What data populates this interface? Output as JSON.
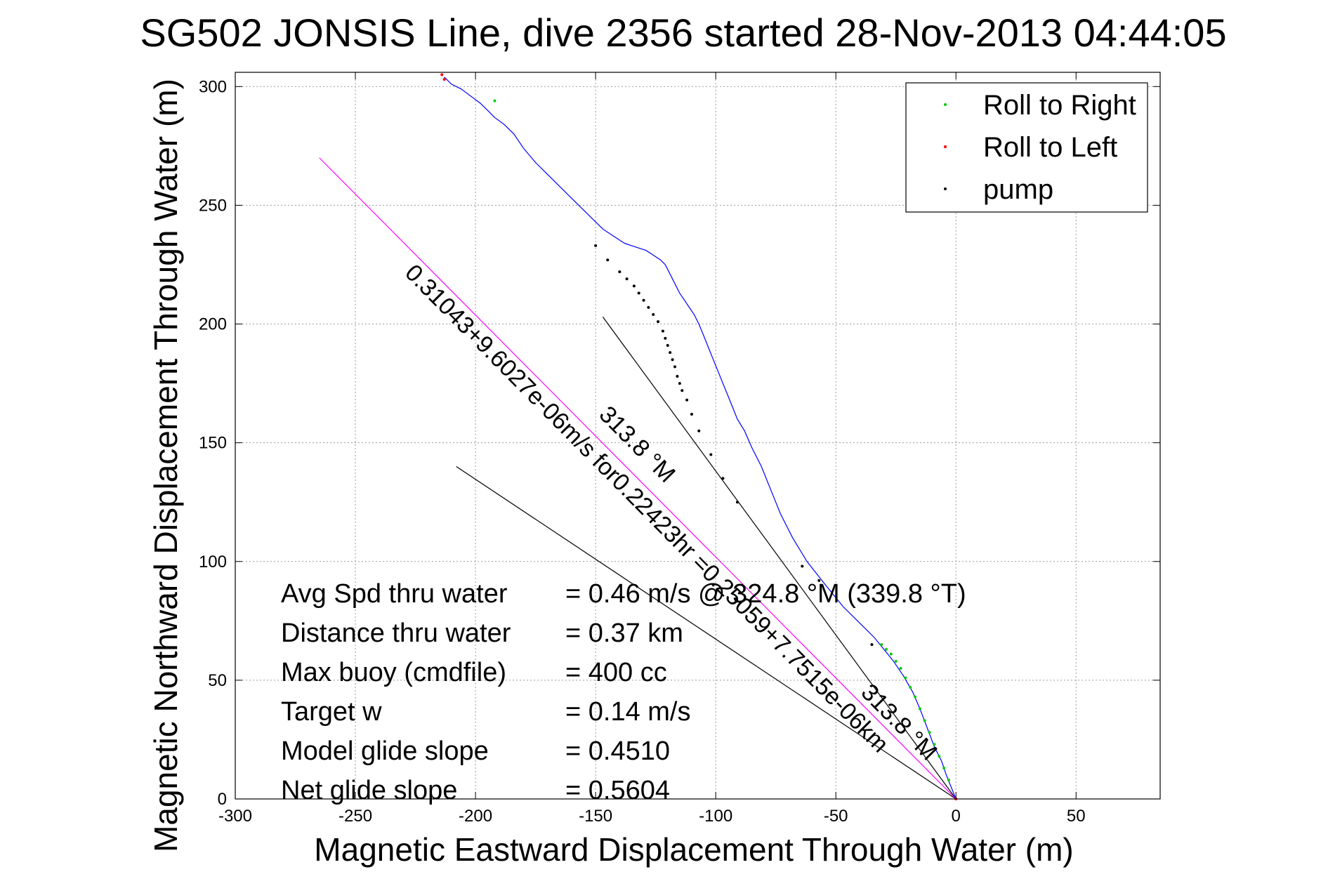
{
  "chart_data": {
    "type": "scatter",
    "title": "SG502 JONSIS Line, dive 2356 started 28-Nov-2013 04:44:05",
    "xlabel": "Magnetic Eastward Displacement Through Water (m)",
    "ylabel": "Magnetic Northward Displacement Through Water (m)",
    "xlim": [
      -300,
      85
    ],
    "ylim": [
      0,
      306
    ],
    "xticks": [
      -300,
      -250,
      -200,
      -150,
      -100,
      -50,
      0,
      50
    ],
    "yticks": [
      0,
      50,
      100,
      150,
      200,
      250,
      300
    ],
    "grid": true,
    "legend_position": "top-right",
    "legend": [
      {
        "label": "Roll to Right",
        "color": "#00cc00"
      },
      {
        "label": "Roll to Left",
        "color": "#ff0000"
      },
      {
        "label": "pump",
        "color": "#000000"
      }
    ],
    "track": {
      "color": "#0000ff",
      "x": [
        0,
        -2,
        -4,
        -6,
        -9,
        -12,
        -15,
        -18,
        -22,
        -26,
        -30,
        -34,
        -40,
        -47,
        -55,
        -62,
        -68,
        -73,
        -77,
        -81,
        -85,
        -88,
        -91,
        -93,
        -95,
        -97,
        -99,
        -101,
        -103,
        -105,
        -107,
        -109,
        -111,
        -113,
        -115,
        -116,
        -117,
        -118,
        -119,
        -120,
        -121,
        -123,
        -126,
        -129,
        -132,
        -135,
        -138,
        -141,
        -144,
        -147,
        -150,
        -155,
        -160,
        -165,
        -170,
        -175,
        -180,
        -184,
        -188,
        -192,
        -195,
        -198,
        -202,
        -206,
        -210,
        -212,
        -213
      ],
      "y": [
        0,
        5,
        10,
        16,
        22,
        30,
        38,
        45,
        52,
        58,
        63,
        68,
        74,
        81,
        91,
        100,
        110,
        120,
        130,
        140,
        148,
        155,
        160,
        165,
        170,
        175,
        180,
        185,
        190,
        195,
        200,
        204,
        207,
        210,
        213,
        215,
        217,
        219,
        221,
        223,
        225,
        227,
        229,
        231,
        232,
        233,
        234,
        236,
        238,
        240,
        243,
        248,
        253,
        258,
        263,
        268,
        274,
        280,
        284,
        287,
        290,
        293,
        296,
        299,
        301,
        303,
        304
      ]
    },
    "roll_right_points": {
      "x": [
        -3,
        -5,
        -7,
        -9,
        -11,
        -13,
        -15,
        -17,
        -19,
        -21,
        -23,
        -25,
        -27,
        -29,
        -31,
        -192
      ],
      "y": [
        8,
        13,
        18,
        23,
        28,
        33,
        38,
        43,
        47,
        51,
        55,
        58,
        61,
        63,
        65,
        294
      ]
    },
    "roll_left_points": {
      "x": [
        0,
        -213,
        -214
      ],
      "y": [
        0,
        303,
        305
      ]
    },
    "pump_points": {
      "x": [
        -150,
        -145,
        -140,
        -137,
        -134,
        -132,
        -130,
        -128,
        -126,
        -124,
        -122,
        -121,
        -120,
        -119,
        -118,
        -117,
        -116,
        -115,
        -114,
        -112,
        -110,
        -107,
        -102,
        -97,
        -91,
        -64,
        -57,
        -35
      ],
      "y": [
        233,
        227,
        222,
        219,
        216,
        213,
        210,
        207,
        204,
        201,
        197,
        194,
        191,
        188,
        185,
        182,
        178,
        175,
        172,
        168,
        162,
        155,
        145,
        135,
        125,
        98,
        92,
        65
      ]
    },
    "vectors": [
      {
        "name": "313.8 °M",
        "x": [
          0,
          -147
        ],
        "y": [
          0,
          203
        ],
        "color": "#000000"
      },
      {
        "name": "313.8 °M",
        "x": [
          0,
          -208
        ],
        "y": [
          0,
          140
        ],
        "color": "#000000"
      },
      {
        "name": "0.31043+9.6027e-06m/s for0.22423hr =0.25059+7.7515e-06km",
        "x": [
          0,
          -265
        ],
        "y": [
          0,
          270
        ],
        "color": "#ff00ff"
      }
    ],
    "annotations": [
      {
        "text": "0.31043+9.6027e-06m/s for0.22423hr =0.25059+7.7515e-06km",
        "x": -131,
        "y": 120,
        "angle": 45.3
      },
      {
        "text": "313.8 °M",
        "x": -135,
        "y": 147,
        "angle": 45.3
      },
      {
        "text": "313.8 °M",
        "x": -26,
        "y": 30,
        "angle": 45.3
      }
    ]
  },
  "stats": [
    {
      "label": "Avg Spd thru water",
      "value": "=  0.46 m/s @ 324.8 °M (339.8 °T)"
    },
    {
      "label": "Distance thru water",
      "value": "=  0.37 km"
    },
    {
      "label": "Max buoy (cmdfile)",
      "value": "= 400 cc"
    },
    {
      "label": "Target w",
      "value": "= 0.14 m/s"
    },
    {
      "label": "Model glide slope",
      "value": "= 0.4510"
    },
    {
      "label": "Net glide slope",
      "value": "= 0.5604"
    }
  ],
  "colors": {
    "axes": "#000000",
    "grid": "#9a9a9a",
    "track": "#0000ff",
    "background": "#ffffff"
  }
}
